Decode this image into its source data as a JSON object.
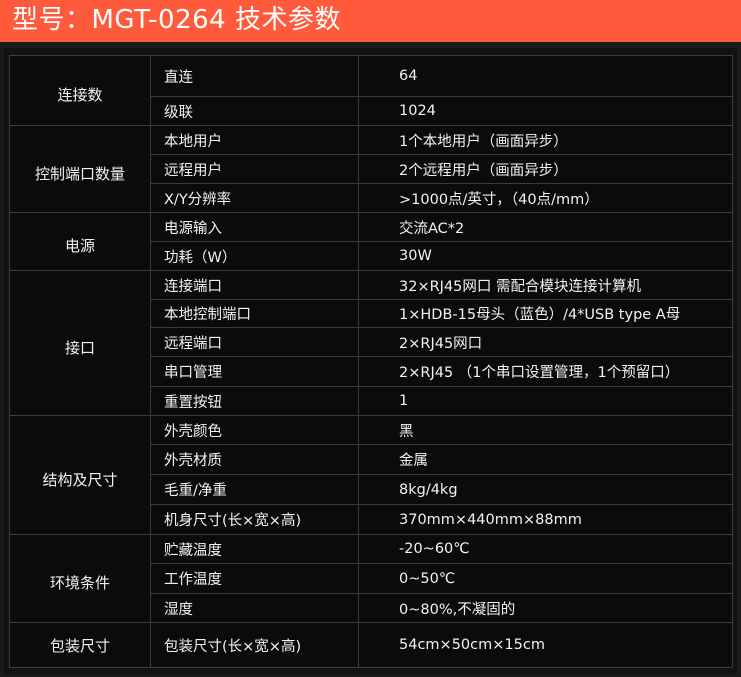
{
  "header": {
    "title": "型号：MGT-0264  技术参数",
    "color": "#ff5a3b"
  },
  "spec_table": {
    "groups": [
      {
        "label": "连接数",
        "rows": [
          {
            "param": "直连",
            "value": "64"
          },
          {
            "param": "级联",
            "value": "1024"
          }
        ]
      },
      {
        "label": "控制端口数量",
        "rows": [
          {
            "param": "本地用户",
            "value": "1个本地用户（画面异步）"
          },
          {
            "param": "远程用户",
            "value": "2个远程用户（画面异步）"
          },
          {
            "param": "X/Y分辨率",
            "value": ">1000点/英寸，（40点/mm）"
          }
        ]
      },
      {
        "label": "电源",
        "rows": [
          {
            "param": "电源输入",
            "value": "交流AC*2"
          },
          {
            "param": "功耗（W）",
            "value": "30W"
          }
        ]
      },
      {
        "label": "接口",
        "rows": [
          {
            "param": "连接端口",
            "value": "32×RJ45网口  需配合模块连接计算机"
          },
          {
            "param": "本地控制端口",
            "value": "1×HDB-15母头（蓝色）/4*USB type A母"
          },
          {
            "param": "远程端口",
            "value": "2×RJ45网口"
          },
          {
            "param": "串口管理",
            "value": "2×RJ45 （1个串口设置管理，1个预留口）"
          },
          {
            "param": "重置按钮",
            "value": "1"
          }
        ]
      },
      {
        "label": "结构及尺寸",
        "rows": [
          {
            "param": "外壳颜色",
            "value": "黑"
          },
          {
            "param": "外壳材质",
            "value": "金属"
          },
          {
            "param": "毛重/净重",
            "value": "8kg/4kg"
          },
          {
            "param": "机身尺寸(长×宽×高)",
            "value": "370mm×440mm×88mm"
          }
        ]
      },
      {
        "label": "环境条件",
        "rows": [
          {
            "param": "贮藏温度",
            "value": "-20~60℃"
          },
          {
            "param": "工作温度",
            "value": "0~50℃"
          },
          {
            "param": "湿度",
            "value": "0~80%,不凝固的"
          }
        ]
      },
      {
        "label": "包装尺寸",
        "rows": [
          {
            "param": "包装尺寸(长×宽×高)",
            "value": "54cm×50cm×15cm"
          }
        ]
      }
    ]
  }
}
